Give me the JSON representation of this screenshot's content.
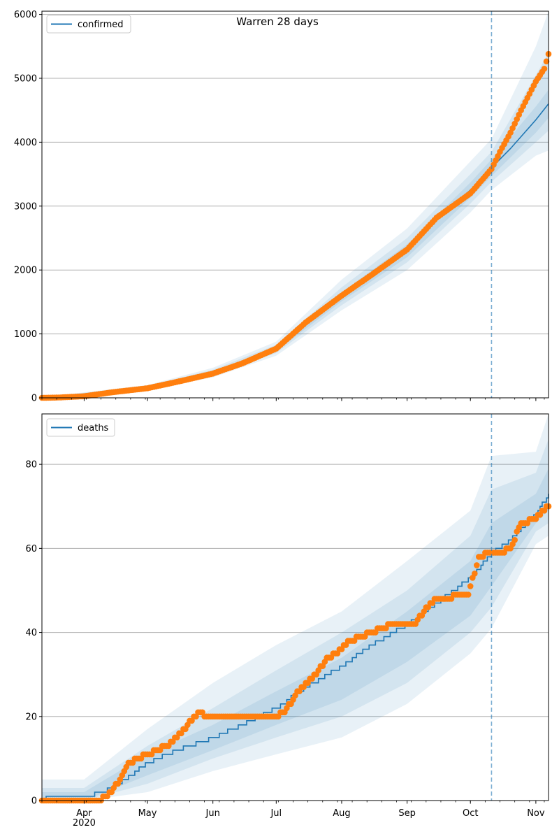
{
  "chart_data": [
    {
      "type": "line",
      "title": "Warren 28 days",
      "xlabel": "",
      "ylabel": "",
      "xlim": [
        "2020-03-12",
        "2020-11-07"
      ],
      "ylim": [
        0,
        6050
      ],
      "yticks": [
        0,
        1000,
        2000,
        3000,
        4000,
        5000,
        6000
      ],
      "ytick_labels": [
        "0",
        "1000",
        "2000",
        "3000",
        "4000",
        "5000",
        "6000"
      ],
      "grid": "y",
      "legend": {
        "position": "top-left",
        "entries": [
          "confirmed"
        ]
      },
      "forecast_start": "2020-10-11",
      "series": [
        {
          "name": "confirmed",
          "style": "line",
          "color": "#1f77b4",
          "x": [
            "2020-03-12",
            "2020-03-20",
            "2020-04-01",
            "2020-04-15",
            "2020-05-01",
            "2020-05-15",
            "2020-06-01",
            "2020-06-15",
            "2020-07-01",
            "2020-07-15",
            "2020-08-01",
            "2020-08-15",
            "2020-09-01",
            "2020-09-15",
            "2020-10-01",
            "2020-10-11",
            "2020-10-20",
            "2020-11-01",
            "2020-11-07"
          ],
          "y": [
            0,
            5,
            25,
            80,
            160,
            270,
            390,
            510,
            760,
            1150,
            1580,
            1900,
            2300,
            2800,
            3250,
            3600,
            3900,
            4350,
            4600
          ]
        },
        {
          "name": "",
          "style": "points",
          "color": "#ff7f0e",
          "x": [
            "2020-03-12",
            "2020-03-20",
            "2020-04-01",
            "2020-04-15",
            "2020-05-01",
            "2020-05-15",
            "2020-06-01",
            "2020-06-15",
            "2020-07-01",
            "2020-07-15",
            "2020-08-01",
            "2020-08-15",
            "2020-09-01",
            "2020-09-15",
            "2020-10-01",
            "2020-10-11",
            "2020-10-15",
            "2020-10-20",
            "2020-10-25",
            "2020-11-01",
            "2020-11-05",
            "2020-11-07"
          ],
          "y": [
            0,
            5,
            25,
            90,
            150,
            250,
            380,
            540,
            770,
            1180,
            1600,
            1920,
            2320,
            2820,
            3200,
            3580,
            3850,
            4150,
            4500,
            4950,
            5150,
            5380
          ]
        }
      ],
      "bands": [
        {
          "x": [
            "2020-03-12",
            "2020-05-01",
            "2020-06-01",
            "2020-07-01",
            "2020-08-01",
            "2020-09-01",
            "2020-10-01",
            "2020-10-11",
            "2020-11-01",
            "2020-11-07"
          ],
          "lower": [
            0,
            130,
            320,
            660,
            1370,
            2000,
            2900,
            3250,
            3790,
            3870
          ],
          "upper": [
            10,
            200,
            470,
            880,
            1850,
            2650,
            3700,
            4050,
            5500,
            6050
          ]
        },
        {
          "x": [
            "2020-03-12",
            "2020-05-01",
            "2020-06-01",
            "2020-07-01",
            "2020-08-01",
            "2020-09-01",
            "2020-10-01",
            "2020-10-11",
            "2020-11-01",
            "2020-11-07"
          ],
          "lower": [
            0,
            140,
            345,
            700,
            1450,
            2120,
            3040,
            3380,
            4000,
            4180
          ],
          "upper": [
            8,
            185,
            440,
            830,
            1730,
            2500,
            3500,
            3850,
            5050,
            5400
          ]
        },
        {
          "x": [
            "2020-03-12",
            "2020-05-01",
            "2020-06-01",
            "2020-07-01",
            "2020-08-01",
            "2020-09-01",
            "2020-10-01",
            "2020-10-11",
            "2020-11-01",
            "2020-11-07"
          ],
          "lower": [
            0,
            150,
            365,
            730,
            1510,
            2200,
            3130,
            3470,
            4150,
            4380
          ],
          "upper": [
            6,
            172,
            415,
            790,
            1650,
            2400,
            3370,
            3730,
            4560,
            4820
          ]
        }
      ]
    },
    {
      "type": "line",
      "title": "",
      "xlabel": "",
      "ylabel": "",
      "xlim": [
        "2020-03-12",
        "2020-11-07"
      ],
      "ylim": [
        0,
        92
      ],
      "yticks": [
        0,
        20,
        40,
        60,
        80
      ],
      "ytick_labels": [
        "0",
        "20",
        "40",
        "60",
        "80"
      ],
      "xticks": [
        "2020-04-01",
        "2020-05-01",
        "2020-06-01",
        "2020-07-01",
        "2020-08-01",
        "2020-09-01",
        "2020-10-01",
        "2020-11-01"
      ],
      "xtick_labels": [
        "Apr\n2020",
        "May",
        "Jun",
        "Jul",
        "Aug",
        "Sep",
        "Oct",
        "Nov"
      ],
      "grid": "y",
      "legend": {
        "position": "top-left",
        "entries": [
          "deaths"
        ]
      },
      "forecast_start": "2020-10-11",
      "series": [
        {
          "name": "deaths",
          "style": "step",
          "color": "#1f77b4",
          "x": [
            "2020-03-12",
            "2020-03-16",
            "2020-04-01",
            "2020-04-10",
            "2020-04-20",
            "2020-05-01",
            "2020-05-15",
            "2020-06-01",
            "2020-06-15",
            "2020-07-01",
            "2020-07-15",
            "2020-08-01",
            "2020-08-15",
            "2020-09-01",
            "2020-09-15",
            "2020-10-01",
            "2020-10-11",
            "2020-10-20",
            "2020-11-01",
            "2020-11-07"
          ],
          "y": [
            0,
            1,
            1,
            2,
            5,
            9,
            12,
            15,
            18,
            22,
            27,
            32,
            37,
            42,
            47,
            53,
            59,
            62,
            68,
            73
          ]
        },
        {
          "name": "",
          "style": "points",
          "color": "#ff7f0e",
          "x": [
            "2020-03-12",
            "2020-03-20",
            "2020-04-01",
            "2020-04-08",
            "2020-04-12",
            "2020-04-15",
            "2020-04-18",
            "2020-04-22",
            "2020-05-01",
            "2020-05-10",
            "2020-05-15",
            "2020-05-20",
            "2020-05-25",
            "2020-05-30",
            "2020-06-15",
            "2020-06-30",
            "2020-07-05",
            "2020-07-10",
            "2020-07-15",
            "2020-07-20",
            "2020-07-25",
            "2020-07-30",
            "2020-08-05",
            "2020-08-10",
            "2020-08-15",
            "2020-08-20",
            "2020-08-25",
            "2020-09-01",
            "2020-09-05",
            "2020-09-10",
            "2020-09-15",
            "2020-09-20",
            "2020-09-25",
            "2020-09-30",
            "2020-10-05",
            "2020-10-11",
            "2020-10-15",
            "2020-10-20",
            "2020-10-25",
            "2020-11-01",
            "2020-11-05",
            "2020-11-07"
          ],
          "y": [
            0,
            0,
            0,
            0,
            1,
            3,
            5,
            9,
            11,
            13,
            15,
            18,
            21,
            20,
            20,
            20,
            21,
            25,
            28,
            30,
            34,
            35,
            38,
            39,
            40,
            41,
            42,
            42,
            42,
            46,
            48,
            48,
            49,
            49,
            58,
            59,
            59,
            60,
            66,
            67,
            69,
            70
          ]
        }
      ],
      "bands": [
        {
          "x": [
            "2020-03-12",
            "2020-04-01",
            "2020-05-01",
            "2020-06-01",
            "2020-07-01",
            "2020-08-01",
            "2020-09-01",
            "2020-10-01",
            "2020-10-11",
            "2020-11-01",
            "2020-11-07"
          ],
          "lower": [
            0,
            0,
            2,
            7,
            11,
            15,
            23,
            35,
            41,
            61,
            63
          ],
          "upper": [
            5,
            5,
            17,
            28,
            37,
            45,
            57,
            69,
            82,
            83,
            92
          ]
        },
        {
          "x": [
            "2020-03-12",
            "2020-04-01",
            "2020-05-01",
            "2020-06-01",
            "2020-07-01",
            "2020-08-01",
            "2020-09-01",
            "2020-10-01",
            "2020-10-11",
            "2020-11-01",
            "2020-11-07"
          ],
          "lower": [
            0,
            0,
            4,
            10,
            15,
            20,
            28,
            40,
            46,
            64,
            66
          ],
          "upper": [
            3,
            3,
            13,
            22,
            31,
            40,
            50,
            63,
            74,
            78,
            86
          ]
        },
        {
          "x": [
            "2020-03-12",
            "2020-04-01",
            "2020-05-01",
            "2020-06-01",
            "2020-07-01",
            "2020-08-01",
            "2020-09-01",
            "2020-10-01",
            "2020-10-11",
            "2020-11-01",
            "2020-11-07"
          ],
          "lower": [
            0,
            0,
            6,
            12,
            18,
            24,
            33,
            44,
            51,
            66,
            69
          ],
          "upper": [
            2,
            2,
            11,
            18,
            26,
            34,
            45,
            57,
            66,
            73,
            79
          ]
        }
      ]
    }
  ]
}
